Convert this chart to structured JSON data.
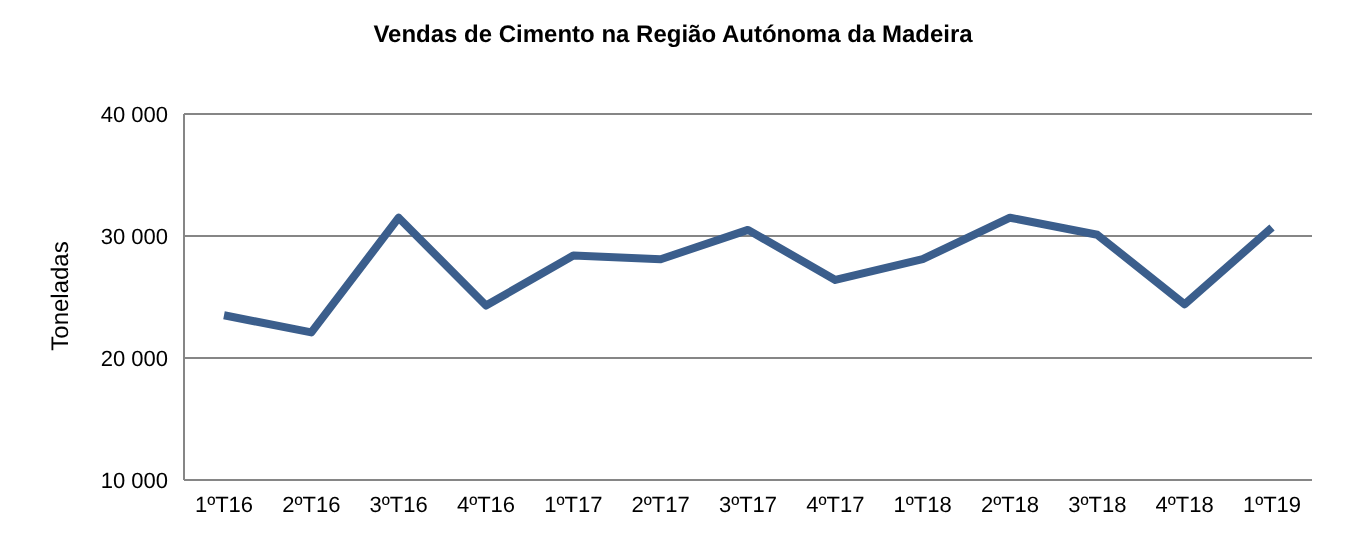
{
  "chart_data": {
    "type": "line",
    "title": "Vendas de Cimento na Região Autónoma da Madeira",
    "ylabel": "Toneladas",
    "categories": [
      "1ºT16",
      "2ºT16",
      "3ºT16",
      "4ºT16",
      "1ºT17",
      "2ºT17",
      "3ºT17",
      "4ºT17",
      "1ºT18",
      "2ºT18",
      "3ºT18",
      "4ºT18",
      "1ºT19"
    ],
    "series": [
      {
        "color": "#3b5e8c",
        "values": [
          23500,
          22100,
          31500,
          24300,
          28400,
          28100,
          30500,
          26400,
          28100,
          31500,
          30100,
          24400,
          30700
        ]
      }
    ],
    "ylim": [
      10000,
      40000
    ],
    "yticks": [
      {
        "value": 10000,
        "label": "10 000"
      },
      {
        "value": 20000,
        "label": "20 000"
      },
      {
        "value": 30000,
        "label": "30 000"
      },
      {
        "value": 40000,
        "label": "40 000"
      }
    ],
    "grid": "y",
    "marker": "none",
    "line_style": "solid",
    "legend": false
  }
}
